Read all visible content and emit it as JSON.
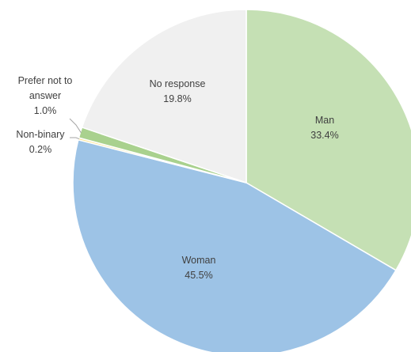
{
  "chart_data": {
    "type": "pie",
    "title": "",
    "start_angle_deg": 0,
    "direction": "clockwise",
    "slices": [
      {
        "label": "Man",
        "value": 33.4,
        "value_label": "33.4%",
        "color": "#c5e0b4"
      },
      {
        "label": "Woman",
        "value": 45.5,
        "value_label": "45.5%",
        "color": "#9dc3e6"
      },
      {
        "label": "Non-binary",
        "value": 0.2,
        "value_label": "0.2%",
        "color": "#ffe699"
      },
      {
        "label": "Prefer not to answer",
        "label_lines": [
          "Prefer not to",
          "answer"
        ],
        "value": 1.0,
        "value_label": "1.0%",
        "color": "#a9d18e"
      },
      {
        "label": "No response",
        "value": 19.8,
        "value_label": "19.8%",
        "color": "#f0f0f0"
      }
    ],
    "slice_border_color": "#ffffff",
    "leader_line_color": "#a6a6a6"
  }
}
